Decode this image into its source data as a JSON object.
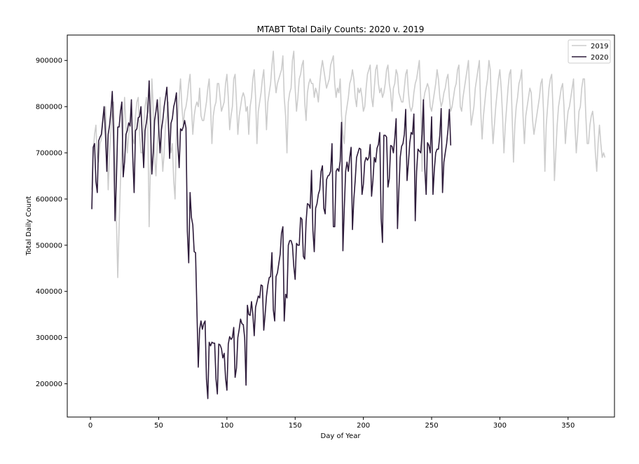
{
  "chart_data": {
    "type": "line",
    "title": "MTABT Total Daily Counts: 2020 v. 2019",
    "xlabel": "Day of Year",
    "ylabel": "Total Daily Count",
    "xlim": [
      -17,
      384
    ],
    "ylim": [
      128000,
      955000
    ],
    "xticks": [
      0,
      50,
      100,
      150,
      200,
      250,
      300,
      350
    ],
    "yticks": [
      200000,
      300000,
      400000,
      500000,
      600000,
      700000,
      800000,
      900000
    ],
    "grid": false,
    "legend": "top-right",
    "series": [
      {
        "name": "2019",
        "color": "#cccccc",
        "x_start": 1,
        "values": [
          620000,
          700000,
          740000,
          760000,
          690000,
          680000,
          720000,
          730000,
          760000,
          790000,
          800000,
          720000,
          620000,
          700000,
          750000,
          790000,
          810000,
          700000,
          560000,
          430000,
          540000,
          640000,
          700000,
          760000,
          820000,
          760000,
          700000,
          740000,
          760000,
          800000,
          730000,
          720000,
          780000,
          810000,
          820000,
          740000,
          700000,
          700000,
          760000,
          800000,
          820000,
          760000,
          540000,
          680000,
          860000,
          800000,
          690000,
          650000,
          720000,
          760000,
          820000,
          720000,
          660000,
          700000,
          760000,
          780000,
          810000,
          720000,
          700000,
          720000,
          640000,
          600000,
          740000,
          780000,
          820000,
          860000,
          800000,
          760000,
          790000,
          800000,
          820000,
          850000,
          870000,
          800000,
          740000,
          780000,
          800000,
          810000,
          800000,
          840000,
          780000,
          770000,
          770000,
          790000,
          810000,
          840000,
          860000,
          800000,
          720000,
          780000,
          800000,
          810000,
          850000,
          850000,
          820000,
          790000,
          800000,
          810000,
          850000,
          870000,
          820000,
          750000,
          780000,
          800000,
          860000,
          870000,
          810000,
          740000,
          780000,
          800000,
          820000,
          830000,
          820000,
          790000,
          800000,
          740000,
          800000,
          820000,
          860000,
          880000,
          820000,
          720000,
          790000,
          810000,
          830000,
          860000,
          880000,
          820000,
          750000,
          810000,
          830000,
          850000,
          890000,
          920000,
          860000,
          830000,
          850000,
          860000,
          870000,
          880000,
          910000,
          820000,
          780000,
          700000,
          810000,
          830000,
          840000,
          900000,
          920000,
          840000,
          790000,
          820000,
          860000,
          870000,
          890000,
          900000,
          810000,
          770000,
          830000,
          850000,
          860000,
          850000,
          850000,
          820000,
          840000,
          830000,
          810000,
          850000,
          880000,
          900000,
          880000,
          860000,
          840000,
          850000,
          860000,
          890000,
          900000,
          910000,
          850000,
          820000,
          840000,
          830000,
          860000,
          780000,
          740000,
          720000,
          780000,
          800000,
          820000,
          850000,
          860000,
          880000,
          860000,
          820000,
          800000,
          840000,
          830000,
          840000,
          820000,
          790000,
          800000,
          840000,
          870000,
          880000,
          890000,
          820000,
          800000,
          840000,
          880000,
          890000,
          850000,
          830000,
          840000,
          820000,
          830000,
          850000,
          880000,
          890000,
          850000,
          830000,
          790000,
          840000,
          850000,
          880000,
          870000,
          830000,
          820000,
          810000,
          810000,
          840000,
          870000,
          880000,
          830000,
          800000,
          790000,
          800000,
          830000,
          850000,
          860000,
          880000,
          900000,
          820000,
          660000,
          810000,
          830000,
          840000,
          850000,
          840000,
          800000,
          790000,
          810000,
          830000,
          850000,
          880000,
          860000,
          820000,
          800000,
          810000,
          830000,
          840000,
          860000,
          870000,
          820000,
          790000,
          800000,
          820000,
          840000,
          850000,
          880000,
          890000,
          800000,
          790000,
          820000,
          840000,
          860000,
          880000,
          900000,
          820000,
          760000,
          780000,
          800000,
          840000,
          860000,
          880000,
          900000,
          790000,
          730000,
          780000,
          810000,
          840000,
          860000,
          900000,
          880000,
          780000,
          720000,
          760000,
          800000,
          830000,
          860000,
          880000,
          840000,
          780000,
          700000,
          760000,
          800000,
          840000,
          870000,
          880000,
          780000,
          680000,
          760000,
          800000,
          820000,
          850000,
          860000,
          880000,
          780000,
          720000,
          780000,
          800000,
          820000,
          840000,
          830000,
          770000,
          740000,
          760000,
          780000,
          800000,
          820000,
          850000,
          860000,
          790000,
          660000,
          760000,
          800000,
          840000,
          860000,
          870000,
          790000,
          640000,
          700000,
          760000,
          800000,
          820000,
          840000,
          850000,
          800000,
          720000,
          760000,
          790000,
          800000,
          820000,
          840000,
          860000,
          760000,
          700000,
          740000,
          790000,
          800000,
          840000,
          860000,
          860000,
          780000,
          720000,
          720000,
          760000,
          780000,
          790000,
          760000,
          700000,
          660000,
          720000,
          760000,
          720000,
          690000,
          700000,
          690000
        ]
      },
      {
        "name": "2020",
        "color": "#2d1b3a",
        "x_start": 1,
        "values": [
          578000,
          712000,
          720000,
          638000,
          614000,
          726000,
          734000,
          740000,
          770000,
          800000,
          740000,
          660000,
          740000,
          760000,
          790000,
          833000,
          730000,
          553000,
          640000,
          756000,
          756000,
          790000,
          810000,
          648000,
          680000,
          740000,
          748000,
          765000,
          758000,
          815000,
          690000,
          614000,
          748000,
          752000,
          776000,
          778000,
          800000,
          730000,
          668000,
          748000,
          766000,
          790000,
          856000,
          760000,
          654000,
          700000,
          770000,
          790000,
          815000,
          755000,
          700000,
          750000,
          770000,
          800000,
          820000,
          842000,
          770000,
          688000,
          764000,
          774000,
          800000,
          812000,
          830000,
          718000,
          668000,
          752000,
          748000,
          756000,
          770000,
          754000,
          530000,
          462000,
          614000,
          560000,
          544000,
          486000,
          484000,
          360000,
          236000,
          318000,
          336000,
          318000,
          330000,
          336000,
          210000,
          168000,
          290000,
          282000,
          290000,
          288000,
          288000,
          210000,
          178000,
          286000,
          284000,
          276000,
          256000,
          266000,
          212000,
          186000,
          286000,
          302000,
          296000,
          300000,
          322000,
          214000,
          234000,
          300000,
          318000,
          340000,
          330000,
          328000,
          300000,
          197000,
          370000,
          350000,
          348000,
          378000,
          350000,
          304000,
          366000,
          378000,
          390000,
          386000,
          414000,
          412000,
          316000,
          350000,
          390000,
          414000,
          430000,
          432000,
          484000,
          360000,
          336000,
          432000,
          440000,
          460000,
          480000,
          526000,
          540000,
          336000,
          394000,
          386000,
          500000,
          510000,
          510000,
          500000,
          454000,
          426000,
          504000,
          500000,
          500000,
          560000,
          556000,
          476000,
          470000,
          550000,
          590000,
          588000,
          580000,
          662000,
          532000,
          486000,
          580000,
          590000,
          610000,
          620000,
          660000,
          672000,
          580000,
          568000,
          642000,
          650000,
          652000,
          660000,
          720000,
          540000,
          540000,
          660000,
          666000,
          660000,
          682000,
          766000,
          488000,
          580000,
          660000,
          680000,
          660000,
          690000,
          712000,
          534000,
          600000,
          640000,
          690000,
          700000,
          710000,
          708000,
          610000,
          632000,
          680000,
          690000,
          684000,
          690000,
          718000,
          606000,
          640000,
          690000,
          680000,
          710000,
          718000,
          744000,
          558000,
          506000,
          738000,
          738000,
          734000,
          626000,
          644000,
          716000,
          714000,
          700000,
          732000,
          774000,
          536000,
          618000,
          690000,
          714000,
          720000,
          740000,
          794000,
          640000,
          678000,
          722000,
          744000,
          740000,
          784000,
          553000,
          660000,
          708000,
          704000,
          700000,
          740000,
          815000,
          666000,
          610000,
          722000,
          716000,
          700000,
          778000,
          610000,
          664000,
          700000,
          708000,
          708000,
          738000,
          796000,
          614000,
          680000,
          700000,
          720000,
          750000,
          794000,
          716000
        ]
      }
    ]
  }
}
